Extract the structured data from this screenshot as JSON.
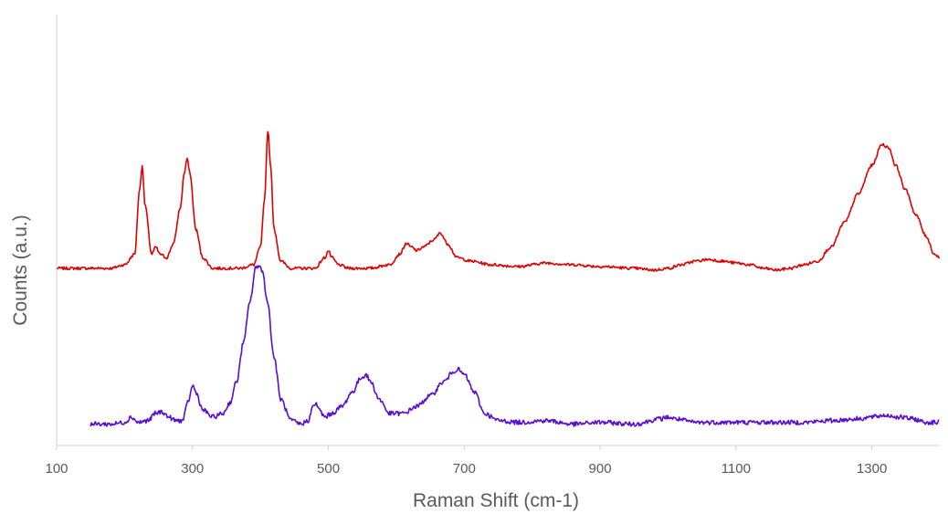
{
  "chart_data": {
    "type": "line",
    "title": "",
    "xlabel": "Raman Shift (cm-1)",
    "ylabel": "Counts (a.u.)",
    "xlim": [
      100,
      1400
    ],
    "ylim": [
      0,
      100
    ],
    "x_ticks": [
      "100",
      "300",
      "500",
      "700",
      "900",
      "1100",
      "1300"
    ],
    "x_tick_values": [
      100,
      300,
      500,
      700,
      900,
      1100,
      1300
    ],
    "y_ticks_shown": false,
    "grid": false,
    "legend": "none",
    "series": [
      {
        "color": "#e00000",
        "x": [
          100,
          180,
          200,
          215,
          222,
          226,
          230,
          240,
          246,
          252,
          262,
          272,
          282,
          288,
          292,
          296,
          305,
          315,
          330,
          350,
          370,
          390,
          400,
          406,
          411,
          415,
          420,
          430,
          445,
          460,
          480,
          495,
          500,
          505,
          515,
          530,
          560,
          590,
          605,
          615,
          622,
          630,
          640,
          655,
          665,
          675,
          690,
          710,
          740,
          780,
          820,
          860,
          900,
          950,
          980,
          1000,
          1020,
          1040,
          1060,
          1080,
          1100,
          1120,
          1140,
          1160,
          1180,
          1200,
          1220,
          1240,
          1260,
          1280,
          1300,
          1315,
          1325,
          1335,
          1350,
          1365,
          1380,
          1392,
          1400
        ],
        "values": [
          49,
          49,
          50,
          53,
          71,
          78,
          67,
          53,
          55,
          53,
          52,
          56,
          66,
          76,
          80,
          76,
          60,
          52,
          49,
          49,
          49,
          50,
          55,
          68,
          88,
          78,
          60,
          51,
          49,
          49,
          49,
          52,
          54,
          52,
          50,
          49,
          49,
          50,
          53,
          56,
          55,
          54,
          55,
          57,
          59,
          56,
          52,
          51,
          50,
          49.5,
          50.5,
          50,
          49.5,
          49,
          48.5,
          49,
          50,
          51,
          51.5,
          51,
          50.5,
          50,
          49,
          48.5,
          49,
          50,
          51,
          55,
          62,
          70,
          78,
          84,
          83,
          78,
          71,
          64,
          58,
          53,
          52
        ]
      },
      {
        "color": "#5a0cd6",
        "x": [
          150,
          180,
          200,
          210,
          220,
          235,
          245,
          255,
          265,
          275,
          285,
          295,
          300,
          305,
          315,
          330,
          345,
          355,
          365,
          375,
          385,
          393,
          398,
          403,
          410,
          420,
          430,
          445,
          460,
          470,
          478,
          482,
          486,
          495,
          505,
          520,
          535,
          548,
          555,
          562,
          575,
          590,
          610,
          630,
          650,
          670,
          685,
          690,
          700,
          715,
          730,
          750,
          780,
          820,
          860,
          900,
          950,
          990,
          1000,
          1010,
          1040,
          1080,
          1120,
          1160,
          1200,
          1240,
          1280,
          1300,
          1320,
          1340,
          1360,
          1380,
          1400
        ],
        "values": [
          5,
          5,
          5.5,
          7,
          5.5,
          6,
          8,
          8.5,
          7,
          6,
          6,
          12,
          16,
          14,
          9,
          7,
          8,
          11,
          17,
          28,
          40,
          49,
          50,
          48,
          40,
          24,
          12,
          6,
          5,
          6,
          10,
          11,
          9,
          7,
          8,
          10,
          14,
          18,
          19,
          17,
          12,
          8,
          8,
          10,
          13,
          17,
          20,
          20.5,
          19,
          14,
          8,
          6,
          5.5,
          6,
          5,
          5.5,
          5,
          6.5,
          7,
          6.5,
          5.5,
          5.5,
          5.5,
          5.5,
          5.5,
          6,
          6.5,
          7,
          7.5,
          7,
          6.5,
          5.5,
          5.5
        ]
      }
    ]
  }
}
